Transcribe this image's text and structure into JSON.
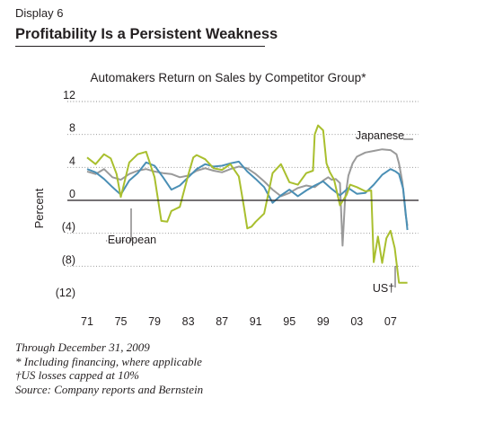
{
  "header": {
    "display_label": "Display 6",
    "title": "Profitability Is a Persistent Weakness"
  },
  "footnotes": [
    "Through December 31, 2009",
    "* Including financing, where applicable",
    "†US losses capped at 10%",
    "Source: Company reports and Bernstein"
  ],
  "colors": {
    "japanese": "#9a9a9a",
    "european": "#4a8fb5",
    "us": "#a9bf2e",
    "axis": "#231f20",
    "grid": "#8a8a8a"
  },
  "chart_data": {
    "type": "line",
    "title": "Automakers Return on Sales by Competitor Group*",
    "ylabel": "Percent",
    "xlabel": "",
    "xlim": [
      1971,
      2010
    ],
    "ylim": [
      -12,
      12
    ],
    "y_ticks": [
      {
        "value": 12,
        "label": "12"
      },
      {
        "value": 8,
        "label": "8"
      },
      {
        "value": 4,
        "label": "4"
      },
      {
        "value": 0,
        "label": "0"
      },
      {
        "value": -4,
        "label": "(4)"
      },
      {
        "value": -8,
        "label": "(8)"
      },
      {
        "value": -12,
        "label": "(12)"
      }
    ],
    "x_ticks": [
      {
        "value": 1971,
        "label": "71"
      },
      {
        "value": 1975,
        "label": "75"
      },
      {
        "value": 1979,
        "label": "79"
      },
      {
        "value": 1983,
        "label": "83"
      },
      {
        "value": 1987,
        "label": "87"
      },
      {
        "value": 1991,
        "label": "91"
      },
      {
        "value": 1995,
        "label": "95"
      },
      {
        "value": 1999,
        "label": "99"
      },
      {
        "value": 2003,
        "label": "03"
      },
      {
        "value": 2007,
        "label": "07"
      }
    ],
    "grid": "horizontal dotted",
    "series": [
      {
        "name": "Japanese",
        "label": "Japanese",
        "color": "#9a9a9a",
        "x": [
          1971,
          1972,
          1973,
          1974,
          1975,
          1976,
          1977,
          1978,
          1979,
          1980,
          1981,
          1982,
          1983,
          1984,
          1985,
          1986,
          1987,
          1988,
          1989,
          1990,
          1991,
          1992,
          1993,
          1994,
          1995,
          1996,
          1997,
          1998,
          1999,
          1999.6,
          2000,
          2000.5,
          2001,
          2001.3,
          2001.6,
          2002,
          2002.5,
          2003,
          2004,
          2005,
          2006,
          2007,
          2007.7,
          2008,
          2008.4,
          2008.8,
          2009
        ],
        "y": [
          3.5,
          3.2,
          3.8,
          2.8,
          2.5,
          3.2,
          3.6,
          3.8,
          3.5,
          3.3,
          3.2,
          2.8,
          3.0,
          3.6,
          3.9,
          3.6,
          3.4,
          3.8,
          4.1,
          3.9,
          3.2,
          2.3,
          1.3,
          0.5,
          0.9,
          1.5,
          1.8,
          1.6,
          2.4,
          2.8,
          2.5,
          2.6,
          2.1,
          -5.5,
          0.2,
          3.0,
          4.5,
          5.3,
          5.8,
          6.0,
          6.2,
          6.1,
          5.6,
          4.5,
          2.2,
          -1.8,
          -3.1
        ]
      },
      {
        "name": "European",
        "label": "European",
        "color": "#4a8fb5",
        "x": [
          1971,
          1972,
          1973,
          1974,
          1975,
          1976,
          1977,
          1978,
          1979,
          1980,
          1981,
          1982,
          1983,
          1984,
          1985,
          1986,
          1987,
          1988,
          1989,
          1990,
          1991,
          1992,
          1993,
          1994,
          1995,
          1996,
          1997,
          1998,
          1999,
          2000,
          2001,
          2002,
          2003,
          2004,
          2005,
          2006,
          2007,
          2007.6,
          2008,
          2008.5,
          2009
        ],
        "y": [
          3.8,
          3.4,
          2.6,
          1.6,
          0.7,
          2.4,
          3.3,
          4.6,
          4.2,
          2.8,
          1.3,
          1.8,
          2.8,
          3.8,
          4.4,
          4.1,
          4.2,
          4.5,
          4.7,
          3.5,
          2.6,
          1.6,
          -0.3,
          0.6,
          1.3,
          0.5,
          1.2,
          1.8,
          2.3,
          1.4,
          0.6,
          1.5,
          0.8,
          0.9,
          1.9,
          3.1,
          3.8,
          3.5,
          3.2,
          1.4,
          -3.6
        ]
      },
      {
        "name": "US",
        "label": "US†",
        "color": "#a9bf2e",
        "x": [
          1971,
          1972,
          1973,
          1973.8,
          1974.5,
          1975,
          1976,
          1977,
          1978,
          1979,
          1979.8,
          1980.5,
          1981,
          1982,
          1983,
          1983.6,
          1984,
          1985,
          1986,
          1987,
          1988,
          1989,
          1989.6,
          1990,
          1990.5,
          1991,
          1992,
          1993,
          1994,
          1995,
          1996,
          1997,
          1997.8,
          1998,
          1998.4,
          1999,
          1999.4,
          1999.8,
          2000.3,
          2001,
          2001.8,
          2002.2,
          2003,
          2004,
          2004.7,
          2005,
          2005.5,
          2006,
          2006.5,
          2007,
          2007.5,
          2008,
          2008.5,
          2009
        ],
        "y": [
          5.2,
          4.4,
          5.6,
          5.1,
          3.2,
          0.4,
          4.6,
          5.6,
          5.9,
          2.8,
          -2.5,
          -2.6,
          -1.3,
          -0.8,
          3.1,
          5.2,
          5.5,
          5.0,
          3.9,
          3.7,
          4.4,
          2.9,
          -0.8,
          -3.4,
          -3.2,
          -2.6,
          -1.6,
          3.3,
          4.4,
          2.2,
          1.9,
          3.3,
          3.6,
          8.0,
          9.1,
          8.5,
          4.5,
          3.4,
          2.5,
          -0.6,
          0.7,
          1.9,
          1.6,
          1.1,
          1.2,
          -7.5,
          -4.4,
          -7.6,
          -4.6,
          -3.7,
          -5.8,
          -10,
          -10,
          -10
        ]
      }
    ]
  }
}
